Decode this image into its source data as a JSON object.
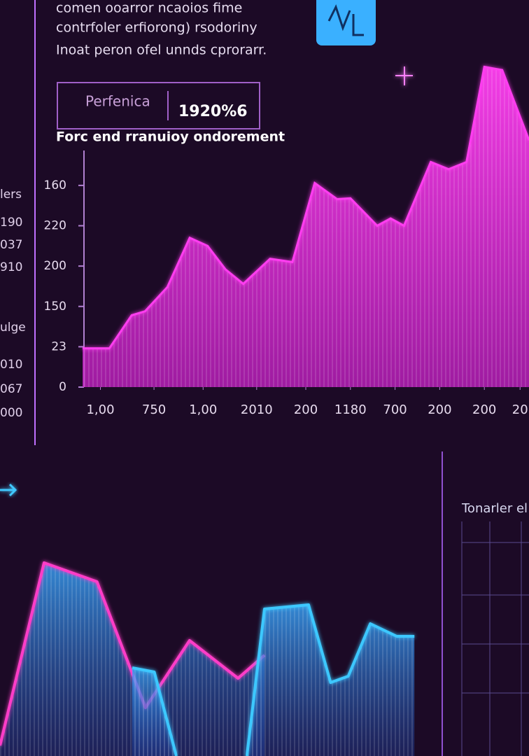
{
  "header": {
    "lines": [
      "comen ooarror ncaoios fime",
      "contrfoler erfiorong) rsodoriny",
      "Inoat peron ofel unnds cprorarr."
    ]
  },
  "kpi": {
    "label": "Perfenica",
    "value": "1920%6"
  },
  "side_panel": {
    "labels": [
      "lers",
      "190",
      "037",
      "910",
      "ulge",
      "010",
      "067",
      "000"
    ]
  },
  "right_panel": {
    "title": "Tonarler el"
  },
  "chart_data": [
    {
      "type": "area",
      "title": "Forc end rranuioy ondorement",
      "color": "#ff3cf0",
      "x": [
        0,
        6,
        11,
        14,
        19,
        24,
        28,
        32,
        36,
        42,
        47,
        52,
        57,
        60,
        66,
        69,
        72,
        78,
        82,
        86,
        90,
        94,
        100
      ],
      "values": [
        48,
        48,
        89,
        94,
        124,
        185,
        175,
        146,
        128,
        159,
        155,
        253,
        233,
        234,
        200,
        209,
        200,
        279,
        270,
        279,
        397,
        393,
        306
      ],
      "xlim": [
        0,
        100
      ],
      "ylim": [
        0,
        400
      ],
      "xticks": [
        {
          "value": 4,
          "label": "1,00"
        },
        {
          "value": 16,
          "label": "750"
        },
        {
          "value": 27,
          "label": "1,00"
        },
        {
          "value": 39,
          "label": "2010"
        },
        {
          "value": 50,
          "label": "200"
        },
        {
          "value": 60,
          "label": "1180"
        },
        {
          "value": 70,
          "label": "700"
        },
        {
          "value": 80,
          "label": "200"
        },
        {
          "value": 90,
          "label": "200"
        },
        {
          "value": 98,
          "label": "20"
        }
      ],
      "yticks": [
        0,
        {
          "value": 50,
          "label": "23"
        },
        {
          "value": 100,
          "label": "150"
        },
        {
          "value": 150,
          "label": "200"
        },
        {
          "value": 200,
          "label": "220"
        },
        {
          "value": 250,
          "label": "160"
        }
      ]
    },
    {
      "type": "line",
      "xlim": [
        0,
        100
      ],
      "ylim": [
        0,
        100
      ],
      "series": [
        {
          "color": "#ff3cc8",
          "x": [
            0,
            10,
            22,
            33,
            43,
            54,
            60
          ],
          "values": [
            5,
            92,
            83,
            23,
            55,
            37,
            48
          ]
        },
        {
          "color": "#3cc8ff",
          "x": [
            30,
            35,
            40,
            null,
            56,
            60,
            70,
            75,
            79,
            84,
            90,
            94
          ],
          "values": [
            42,
            40,
            0,
            null,
            0,
            70,
            72,
            35,
            38,
            63,
            57,
            57
          ]
        }
      ]
    }
  ]
}
